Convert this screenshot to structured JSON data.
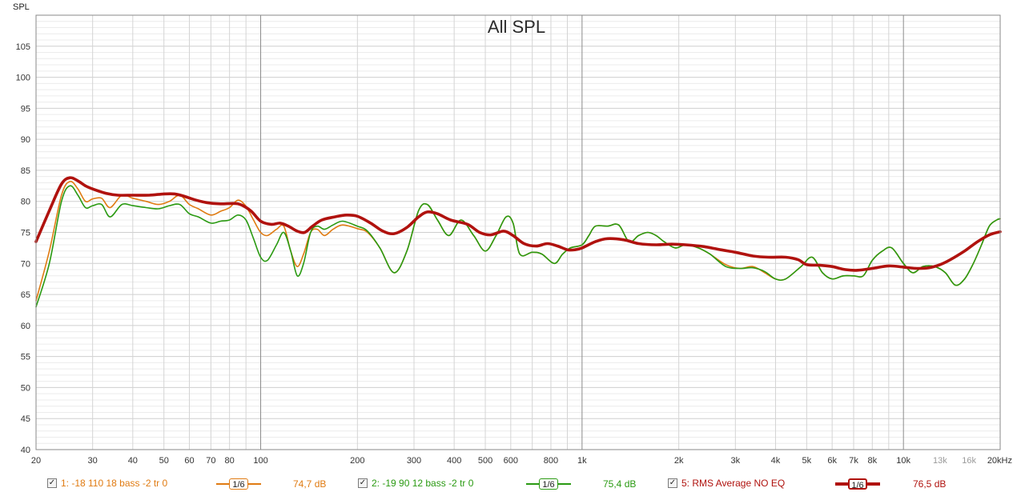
{
  "chart_data": {
    "type": "line",
    "title": "All SPL",
    "ylabel": "SPL",
    "xscale": "log",
    "xlim": [
      20,
      20000
    ],
    "ylim": [
      40,
      110
    ],
    "y_ticks": [
      "40",
      "45",
      "50",
      "55",
      "60",
      "65",
      "70",
      "75",
      "80",
      "85",
      "90",
      "95",
      "100",
      "105"
    ],
    "x_ticks": [
      {
        "v": 20,
        "label": "20",
        "minor": false
      },
      {
        "v": 30,
        "label": "30",
        "minor": false
      },
      {
        "v": 40,
        "label": "40",
        "minor": false
      },
      {
        "v": 50,
        "label": "50",
        "minor": false
      },
      {
        "v": 60,
        "label": "60",
        "minor": false
      },
      {
        "v": 70,
        "label": "70",
        "minor": false
      },
      {
        "v": 80,
        "label": "80",
        "minor": false
      },
      {
        "v": 100,
        "label": "100",
        "minor": false
      },
      {
        "v": 200,
        "label": "200",
        "minor": false
      },
      {
        "v": 300,
        "label": "300",
        "minor": false
      },
      {
        "v": 400,
        "label": "400",
        "minor": false
      },
      {
        "v": 500,
        "label": "500",
        "minor": false
      },
      {
        "v": 600,
        "label": "600",
        "minor": false
      },
      {
        "v": 800,
        "label": "800",
        "minor": false
      },
      {
        "v": 1000,
        "label": "1k",
        "minor": false
      },
      {
        "v": 2000,
        "label": "2k",
        "minor": false
      },
      {
        "v": 3000,
        "label": "3k",
        "minor": false
      },
      {
        "v": 4000,
        "label": "4k",
        "minor": false
      },
      {
        "v": 5000,
        "label": "5k",
        "minor": false
      },
      {
        "v": 6000,
        "label": "6k",
        "minor": false
      },
      {
        "v": 7000,
        "label": "7k",
        "minor": false
      },
      {
        "v": 8000,
        "label": "8k",
        "minor": false
      },
      {
        "v": 10000,
        "label": "10k",
        "minor": false
      },
      {
        "v": 13000,
        "label": "13k",
        "minor": true
      },
      {
        "v": 16000,
        "label": "16k",
        "minor": true
      },
      {
        "v": 20000,
        "label": "20kHz",
        "minor": false
      }
    ],
    "grid": true,
    "legend_position": "bottom",
    "series": [
      {
        "name": "1: -18 110 18 bass -2 tr 0",
        "color": "#e07b12",
        "width": 1.6,
        "smoothing": "1/6",
        "level": "74,7 dB",
        "checked": true,
        "points": [
          [
            20,
            64
          ],
          [
            22,
            72
          ],
          [
            24,
            81
          ],
          [
            25.5,
            83.2
          ],
          [
            27,
            82
          ],
          [
            28.5,
            80
          ],
          [
            30,
            80.4
          ],
          [
            32,
            80.5
          ],
          [
            34,
            79
          ],
          [
            37,
            81
          ],
          [
            40,
            80.5
          ],
          [
            44,
            80
          ],
          [
            48,
            79.5
          ],
          [
            52,
            80
          ],
          [
            56,
            81
          ],
          [
            60,
            79.5
          ],
          [
            64,
            78.8
          ],
          [
            70,
            77.8
          ],
          [
            75,
            78.4
          ],
          [
            80,
            79
          ],
          [
            85,
            80.2
          ],
          [
            90,
            79.2
          ],
          [
            95,
            77
          ],
          [
            100,
            75
          ],
          [
            105,
            74.5
          ],
          [
            112,
            75.5
          ],
          [
            118,
            76
          ],
          [
            124,
            72
          ],
          [
            130,
            69.5
          ],
          [
            136,
            71.5
          ],
          [
            143,
            75
          ],
          [
            150,
            75.5
          ],
          [
            158,
            74.5
          ],
          [
            168,
            75.5
          ],
          [
            180,
            76.2
          ],
          [
            200,
            75.6
          ],
          [
            215,
            75
          ],
          [
            235,
            72.5
          ],
          [
            260,
            68.5
          ],
          [
            285,
            72
          ],
          [
            310,
            78.5
          ],
          [
            330,
            79.5
          ],
          [
            355,
            77
          ],
          [
            385,
            74.5
          ],
          [
            420,
            77
          ],
          [
            460,
            74.5
          ],
          [
            500,
            72
          ],
          [
            540,
            74.5
          ],
          [
            580,
            77.5
          ],
          [
            610,
            76.5
          ],
          [
            640,
            71.5
          ],
          [
            700,
            71.8
          ],
          [
            750,
            71.5
          ],
          [
            820,
            70
          ],
          [
            870,
            71.5
          ],
          [
            920,
            72.5
          ],
          [
            1000,
            73
          ],
          [
            1050,
            74.5
          ],
          [
            1100,
            76
          ],
          [
            1200,
            76
          ],
          [
            1300,
            76.2
          ],
          [
            1400,
            73.5
          ],
          [
            1500,
            74.5
          ],
          [
            1600,
            75
          ],
          [
            1700,
            74.5
          ],
          [
            1800,
            73.5
          ],
          [
            1950,
            72.5
          ],
          [
            2100,
            73
          ],
          [
            2300,
            72.5
          ],
          [
            2500,
            71.5
          ],
          [
            2800,
            69.8
          ],
          [
            3100,
            69.2
          ],
          [
            3400,
            69.5
          ],
          [
            3700,
            68.5
          ],
          [
            4000,
            67.5
          ],
          [
            4300,
            67.5
          ],
          [
            4800,
            69.5
          ],
          [
            5200,
            71
          ],
          [
            5600,
            68.5
          ],
          [
            6000,
            67.5
          ],
          [
            6500,
            68
          ],
          [
            7000,
            68
          ],
          [
            7500,
            68
          ],
          [
            8000,
            70.5
          ],
          [
            8600,
            72
          ],
          [
            9200,
            72.5
          ],
          [
            10000,
            70
          ],
          [
            10700,
            68.5
          ],
          [
            11500,
            69.5
          ],
          [
            12500,
            69.5
          ],
          [
            13500,
            68.5
          ],
          [
            14500,
            66.5
          ],
          [
            15500,
            67.5
          ],
          [
            16500,
            70
          ],
          [
            17500,
            73
          ],
          [
            18500,
            76
          ],
          [
            19500,
            77
          ],
          [
            20000,
            77.2
          ]
        ]
      },
      {
        "name": "2: -19 90 12 bass -2 tr 0",
        "color": "#2a9a12",
        "width": 1.6,
        "smoothing": "1/6",
        "level": "75,4 dB",
        "checked": true,
        "points": [
          [
            20,
            63
          ],
          [
            22,
            70
          ],
          [
            24,
            80
          ],
          [
            25.5,
            82.5
          ],
          [
            27,
            81
          ],
          [
            28.5,
            79
          ],
          [
            30,
            79.3
          ],
          [
            32,
            79.5
          ],
          [
            34,
            77.5
          ],
          [
            37,
            79.5
          ],
          [
            40,
            79.3
          ],
          [
            44,
            79
          ],
          [
            48,
            78.8
          ],
          [
            52,
            79.3
          ],
          [
            56,
            79.5
          ],
          [
            60,
            78
          ],
          [
            64,
            77.5
          ],
          [
            70,
            76.5
          ],
          [
            75,
            76.8
          ],
          [
            80,
            77
          ],
          [
            85,
            77.8
          ],
          [
            90,
            77
          ],
          [
            95,
            74
          ],
          [
            100,
            71
          ],
          [
            105,
            70.5
          ],
          [
            112,
            73
          ],
          [
            118,
            75
          ],
          [
            124,
            72
          ],
          [
            130,
            68
          ],
          [
            136,
            70
          ],
          [
            143,
            75
          ],
          [
            150,
            76
          ],
          [
            158,
            75.5
          ],
          [
            168,
            76.2
          ],
          [
            180,
            76.8
          ],
          [
            200,
            76
          ],
          [
            215,
            75.2
          ],
          [
            235,
            72.5
          ],
          [
            260,
            68.5
          ],
          [
            285,
            72
          ],
          [
            310,
            78.5
          ],
          [
            330,
            79.5
          ],
          [
            355,
            77
          ],
          [
            385,
            74.5
          ],
          [
            420,
            77
          ],
          [
            460,
            74.5
          ],
          [
            500,
            72
          ],
          [
            540,
            74.5
          ],
          [
            580,
            77.5
          ],
          [
            610,
            76.5
          ],
          [
            640,
            71.5
          ],
          [
            700,
            71.8
          ],
          [
            750,
            71.5
          ],
          [
            820,
            70
          ],
          [
            870,
            71.5
          ],
          [
            920,
            72.5
          ],
          [
            1000,
            73
          ],
          [
            1050,
            74.5
          ],
          [
            1100,
            76
          ],
          [
            1200,
            76
          ],
          [
            1300,
            76.2
          ],
          [
            1400,
            73.5
          ],
          [
            1500,
            74.5
          ],
          [
            1600,
            75
          ],
          [
            1700,
            74.5
          ],
          [
            1800,
            73.5
          ],
          [
            1950,
            72.5
          ],
          [
            2100,
            73
          ],
          [
            2300,
            72.5
          ],
          [
            2500,
            71.5
          ],
          [
            2800,
            69.5
          ],
          [
            3100,
            69.2
          ],
          [
            3400,
            69.3
          ],
          [
            3700,
            68.7
          ],
          [
            4000,
            67.5
          ],
          [
            4300,
            67.5
          ],
          [
            4800,
            69.5
          ],
          [
            5200,
            71
          ],
          [
            5600,
            68.5
          ],
          [
            6000,
            67.5
          ],
          [
            6500,
            68
          ],
          [
            7000,
            68
          ],
          [
            7500,
            68
          ],
          [
            8000,
            70.5
          ],
          [
            8600,
            72
          ],
          [
            9200,
            72.5
          ],
          [
            10000,
            70
          ],
          [
            10700,
            68.5
          ],
          [
            11500,
            69.5
          ],
          [
            12500,
            69.5
          ],
          [
            13500,
            68.5
          ],
          [
            14500,
            66.5
          ],
          [
            15500,
            67.5
          ],
          [
            16500,
            70
          ],
          [
            17500,
            73
          ],
          [
            18500,
            76
          ],
          [
            19500,
            77
          ],
          [
            20000,
            77.2
          ]
        ]
      },
      {
        "name": "5: RMS Average NO EQ",
        "color": "#b0120e",
        "width": 3.6,
        "smoothing": "1/6",
        "level": "76,5 dB",
        "checked": true,
        "points": [
          [
            20,
            73.5
          ],
          [
            22,
            78.5
          ],
          [
            24,
            82.8
          ],
          [
            25.5,
            83.8
          ],
          [
            27,
            83.3
          ],
          [
            28.5,
            82.5
          ],
          [
            30,
            82
          ],
          [
            33,
            81.3
          ],
          [
            36,
            81
          ],
          [
            40,
            81
          ],
          [
            45,
            81
          ],
          [
            50,
            81.2
          ],
          [
            54,
            81.2
          ],
          [
            58,
            80.8
          ],
          [
            62,
            80.3
          ],
          [
            68,
            79.8
          ],
          [
            75,
            79.6
          ],
          [
            85,
            79.6
          ],
          [
            93,
            78.5
          ],
          [
            100,
            76.8
          ],
          [
            108,
            76.3
          ],
          [
            115,
            76.5
          ],
          [
            122,
            76
          ],
          [
            130,
            75.2
          ],
          [
            137,
            75
          ],
          [
            145,
            76
          ],
          [
            155,
            77
          ],
          [
            170,
            77.5
          ],
          [
            185,
            77.8
          ],
          [
            200,
            77.6
          ],
          [
            220,
            76.5
          ],
          [
            240,
            75.2
          ],
          [
            260,
            74.8
          ],
          [
            285,
            75.8
          ],
          [
            310,
            77.5
          ],
          [
            330,
            78.3
          ],
          [
            355,
            78
          ],
          [
            390,
            77
          ],
          [
            440,
            76.3
          ],
          [
            480,
            75
          ],
          [
            520,
            74.6
          ],
          [
            570,
            75.2
          ],
          [
            610,
            74.5
          ],
          [
            660,
            73.2
          ],
          [
            720,
            72.8
          ],
          [
            780,
            73.2
          ],
          [
            840,
            72.8
          ],
          [
            900,
            72.2
          ],
          [
            950,
            72.2
          ],
          [
            1000,
            72.5
          ],
          [
            1100,
            73.5
          ],
          [
            1200,
            74
          ],
          [
            1350,
            73.8
          ],
          [
            1500,
            73.2
          ],
          [
            1700,
            73
          ],
          [
            1900,
            73.1
          ],
          [
            2100,
            73
          ],
          [
            2400,
            72.7
          ],
          [
            2700,
            72.2
          ],
          [
            3000,
            71.8
          ],
          [
            3400,
            71.2
          ],
          [
            3800,
            71
          ],
          [
            4300,
            71
          ],
          [
            4700,
            70.6
          ],
          [
            5000,
            69.8
          ],
          [
            5500,
            69.7
          ],
          [
            6000,
            69.5
          ],
          [
            6600,
            69
          ],
          [
            7200,
            68.9
          ],
          [
            8000,
            69.2
          ],
          [
            9000,
            69.6
          ],
          [
            10000,
            69.4
          ],
          [
            11000,
            69.2
          ],
          [
            12000,
            69.3
          ],
          [
            13000,
            69.8
          ],
          [
            14000,
            70.6
          ],
          [
            15500,
            72
          ],
          [
            17000,
            73.5
          ],
          [
            18500,
            74.6
          ],
          [
            20000,
            75.1
          ]
        ]
      }
    ]
  }
}
